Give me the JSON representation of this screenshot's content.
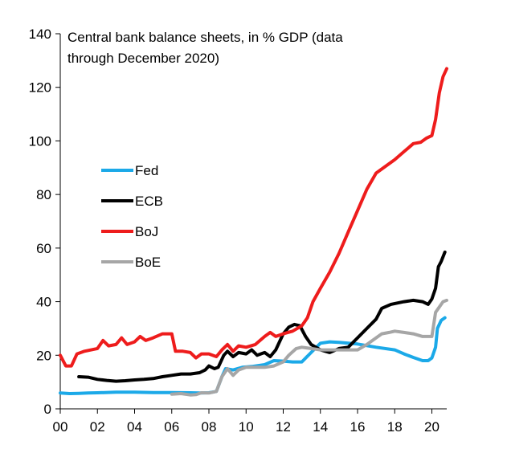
{
  "chart_data": {
    "type": "line",
    "title_lines": [
      "Central bank balance sheets, in % GDP (data",
      "through December 2020)"
    ],
    "xlabel": "",
    "ylabel": "",
    "xlim": [
      2000,
      2020.8
    ],
    "ylim": [
      0,
      140
    ],
    "x_ticks": [
      {
        "value": 2000,
        "label": "00"
      },
      {
        "value": 2002,
        "label": "02"
      },
      {
        "value": 2004,
        "label": "04"
      },
      {
        "value": 2006,
        "label": "06"
      },
      {
        "value": 2008,
        "label": "08"
      },
      {
        "value": 2010,
        "label": "10"
      },
      {
        "value": 2012,
        "label": "12"
      },
      {
        "value": 2014,
        "label": "14"
      },
      {
        "value": 2016,
        "label": "16"
      },
      {
        "value": 2018,
        "label": "18"
      },
      {
        "value": 2020,
        "label": "20"
      }
    ],
    "y_ticks": [
      0,
      20,
      40,
      60,
      80,
      100,
      120,
      140
    ],
    "grid": false,
    "legend_position": "left-middle",
    "series": [
      {
        "name": "Fed",
        "color": "#1ba9e8",
        "points": [
          [
            2000,
            5.9
          ],
          [
            2000.5,
            5.7
          ],
          [
            2001,
            5.8
          ],
          [
            2001.5,
            5.9
          ],
          [
            2002,
            6.0
          ],
          [
            2003,
            6.2
          ],
          [
            2004,
            6.2
          ],
          [
            2005,
            6.1
          ],
          [
            2006,
            6.1
          ],
          [
            2007,
            6.0
          ],
          [
            2007.5,
            5.9
          ],
          [
            2008,
            6.0
          ],
          [
            2008.4,
            6.5
          ],
          [
            2008.7,
            12
          ],
          [
            2008.9,
            15
          ],
          [
            2009.3,
            14.5
          ],
          [
            2009.8,
            15.5
          ],
          [
            2010.3,
            15.8
          ],
          [
            2011,
            16.5
          ],
          [
            2011.5,
            18
          ],
          [
            2012,
            17.8
          ],
          [
            2012.5,
            17.5
          ],
          [
            2013,
            17.5
          ],
          [
            2013.5,
            21
          ],
          [
            2014,
            24.5
          ],
          [
            2014.5,
            25
          ],
          [
            2015,
            24.8
          ],
          [
            2016,
            24.2
          ],
          [
            2017,
            23
          ],
          [
            2018,
            22
          ],
          [
            2018.5,
            20.5
          ],
          [
            2019,
            19.2
          ],
          [
            2019.5,
            18
          ],
          [
            2019.8,
            18
          ],
          [
            2020,
            19
          ],
          [
            2020.2,
            23
          ],
          [
            2020.3,
            30
          ],
          [
            2020.5,
            33
          ],
          [
            2020.7,
            34
          ]
        ]
      },
      {
        "name": "ECB",
        "color": "#000000",
        "points": [
          [
            2001,
            12
          ],
          [
            2001.5,
            11.8
          ],
          [
            2002,
            11
          ],
          [
            2002.5,
            10.6
          ],
          [
            2003,
            10.3
          ],
          [
            2003.5,
            10.5
          ],
          [
            2004,
            10.8
          ],
          [
            2004.5,
            11
          ],
          [
            2005,
            11.3
          ],
          [
            2005.5,
            12
          ],
          [
            2006,
            12.5
          ],
          [
            2006.5,
            13
          ],
          [
            2007,
            13
          ],
          [
            2007.5,
            13.5
          ],
          [
            2007.8,
            14.5
          ],
          [
            2008,
            16
          ],
          [
            2008.3,
            15
          ],
          [
            2008.5,
            15.5
          ],
          [
            2008.8,
            20
          ],
          [
            2009,
            21.5
          ],
          [
            2009.3,
            19.5
          ],
          [
            2009.6,
            21
          ],
          [
            2010,
            20.5
          ],
          [
            2010.3,
            22
          ],
          [
            2010.6,
            20
          ],
          [
            2011,
            21
          ],
          [
            2011.3,
            19.5
          ],
          [
            2011.6,
            22
          ],
          [
            2012,
            28
          ],
          [
            2012.3,
            30.5
          ],
          [
            2012.6,
            31.5
          ],
          [
            2012.9,
            31
          ],
          [
            2013.2,
            27
          ],
          [
            2013.5,
            24
          ],
          [
            2014,
            22
          ],
          [
            2014.5,
            21
          ],
          [
            2015,
            22.5
          ],
          [
            2015.5,
            23
          ],
          [
            2016,
            26.5
          ],
          [
            2016.5,
            30
          ],
          [
            2017,
            33.5
          ],
          [
            2017.3,
            37.5
          ],
          [
            2017.8,
            39
          ],
          [
            2018.5,
            40
          ],
          [
            2019,
            40.5
          ],
          [
            2019.5,
            40
          ],
          [
            2019.8,
            39
          ],
          [
            2020,
            41
          ],
          [
            2020.2,
            45
          ],
          [
            2020.35,
            53
          ],
          [
            2020.5,
            55
          ],
          [
            2020.7,
            58.5
          ]
        ]
      },
      {
        "name": "BoJ",
        "color": "#ee1c1c",
        "points": [
          [
            2000,
            20
          ],
          [
            2000.3,
            16
          ],
          [
            2000.6,
            16
          ],
          [
            2000.9,
            20.5
          ],
          [
            2001.3,
            21.5
          ],
          [
            2002,
            22.5
          ],
          [
            2002.3,
            25.5
          ],
          [
            2002.6,
            23.5
          ],
          [
            2003,
            24
          ],
          [
            2003.3,
            26.5
          ],
          [
            2003.6,
            24
          ],
          [
            2004,
            25
          ],
          [
            2004.3,
            27
          ],
          [
            2004.6,
            25.5
          ],
          [
            2005,
            26.5
          ],
          [
            2005.5,
            28
          ],
          [
            2006,
            28
          ],
          [
            2006.2,
            21.5
          ],
          [
            2006.6,
            21.5
          ],
          [
            2007,
            21
          ],
          [
            2007.3,
            19
          ],
          [
            2007.6,
            20.5
          ],
          [
            2008,
            20.5
          ],
          [
            2008.4,
            19.5
          ],
          [
            2008.7,
            22
          ],
          [
            2009,
            24
          ],
          [
            2009.3,
            21.5
          ],
          [
            2009.6,
            23.5
          ],
          [
            2010,
            23
          ],
          [
            2010.5,
            24
          ],
          [
            2011,
            27
          ],
          [
            2011.3,
            28.5
          ],
          [
            2011.6,
            27
          ],
          [
            2012,
            28
          ],
          [
            2012.5,
            29
          ],
          [
            2013,
            31
          ],
          [
            2013.3,
            34
          ],
          [
            2013.6,
            40
          ],
          [
            2014,
            45
          ],
          [
            2014.5,
            51
          ],
          [
            2015,
            58
          ],
          [
            2015.5,
            66
          ],
          [
            2016,
            74
          ],
          [
            2016.5,
            82
          ],
          [
            2017,
            88
          ],
          [
            2017.5,
            90.5
          ],
          [
            2018,
            93
          ],
          [
            2018.5,
            96
          ],
          [
            2019,
            99
          ],
          [
            2019.4,
            99.5
          ],
          [
            2019.7,
            101
          ],
          [
            2020,
            102
          ],
          [
            2020.2,
            108
          ],
          [
            2020.4,
            118
          ],
          [
            2020.6,
            124
          ],
          [
            2020.8,
            127
          ]
        ]
      },
      {
        "name": "BoE",
        "color": "#a6a6a6",
        "points": [
          [
            2006,
            5.5
          ],
          [
            2006.5,
            5.7
          ],
          [
            2007,
            5.2
          ],
          [
            2007.3,
            5.3
          ],
          [
            2007.6,
            6
          ],
          [
            2008,
            5.9
          ],
          [
            2008.4,
            6.5
          ],
          [
            2008.7,
            12
          ],
          [
            2009,
            15
          ],
          [
            2009.3,
            12.5
          ],
          [
            2009.6,
            14.5
          ],
          [
            2010,
            15.5
          ],
          [
            2010.5,
            15.5
          ],
          [
            2011,
            15.5
          ],
          [
            2011.5,
            16
          ],
          [
            2012,
            17.5
          ],
          [
            2012.3,
            20
          ],
          [
            2012.7,
            22.5
          ],
          [
            2013,
            23
          ],
          [
            2013.5,
            22.5
          ],
          [
            2014,
            22
          ],
          [
            2015,
            22
          ],
          [
            2016,
            22
          ],
          [
            2016.5,
            24
          ],
          [
            2017,
            26.5
          ],
          [
            2017.3,
            28
          ],
          [
            2017.7,
            28.5
          ],
          [
            2018,
            29
          ],
          [
            2018.5,
            28.5
          ],
          [
            2019,
            28
          ],
          [
            2019.5,
            27
          ],
          [
            2020,
            27
          ],
          [
            2020.2,
            36
          ],
          [
            2020.4,
            38
          ],
          [
            2020.6,
            40
          ],
          [
            2020.8,
            40.5
          ]
        ]
      }
    ]
  }
}
